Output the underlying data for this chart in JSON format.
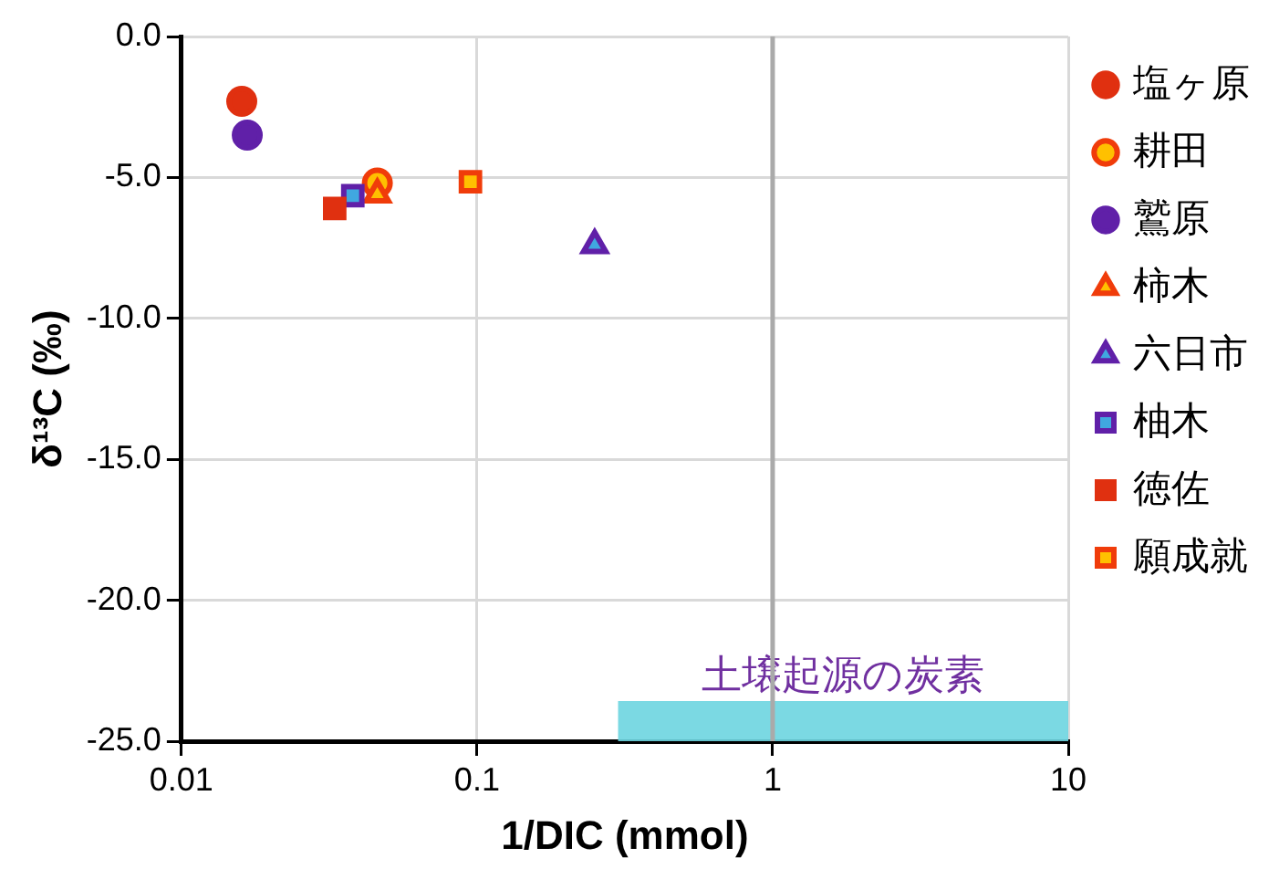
{
  "chart_data": {
    "type": "scatter",
    "xlabel": "1/DIC (mmol)",
    "ylabel": "δ¹³C (‰)",
    "log": "x",
    "xlim": [
      0.01,
      10
    ],
    "xticks": [
      0.01,
      0.1,
      1,
      10
    ],
    "ylim": [
      -25,
      0
    ],
    "yticks": [
      {
        "value": -25,
        "label": "-25.0"
      },
      {
        "value": -20,
        "label": "-20.0"
      },
      {
        "value": -15,
        "label": "-15.0"
      },
      {
        "value": -10,
        "label": "-10.0"
      },
      {
        "value": -5,
        "label": "-5.0"
      },
      {
        "value": 0,
        "label": "0.0"
      }
    ],
    "grid": true,
    "legend": "right",
    "ref_lines": [
      {
        "axis": "x",
        "value": 1,
        "color": "#aaaaaa"
      }
    ],
    "bands": [
      {
        "axis": "x",
        "from": 0.3,
        "to": 10,
        "label": "土壌起源の炭素",
        "color": "#6dd5e0"
      }
    ],
    "series": [
      {
        "name": "塩ヶ原",
        "marker": "circle",
        "color": "#e03010",
        "colors": [
          "#e03010"
        ],
        "x": [
          0.016
        ],
        "values": [
          -2.3
        ]
      },
      {
        "name": "耕田",
        "marker": "circle",
        "color": "#f03c0a",
        "colors": [
          "#ffc000"
        ],
        "x": [
          0.046
        ],
        "values": [
          -5.2
        ]
      },
      {
        "name": "鷲原",
        "marker": "circle",
        "color": "#6020a8",
        "colors": [
          "#6020a8"
        ],
        "x": [
          0.0167
        ],
        "values": [
          -3.5
        ]
      },
      {
        "name": "柿木",
        "marker": "triangle",
        "color": "#f03c0a",
        "colors": [
          "#ffc000"
        ],
        "x": [
          0.046
        ],
        "values": [
          -5.6
        ]
      },
      {
        "name": "六日市",
        "marker": "triangle",
        "color": "#6020a8",
        "colors": [
          "#40a8e0"
        ],
        "x": [
          0.25
        ],
        "values": [
          -7.4
        ]
      },
      {
        "name": "柚木",
        "marker": "square",
        "color": "#6020a8",
        "colors": [
          "#40a8e0"
        ],
        "x": [
          0.038
        ],
        "values": [
          -5.65
        ]
      },
      {
        "name": "徳佐",
        "marker": "square",
        "color": "#e03010",
        "colors": [
          "#e03010"
        ],
        "x": [
          0.033
        ],
        "values": [
          -6.1
        ]
      },
      {
        "name": "願成就",
        "marker": "square",
        "color": "#f03c0a",
        "colors": [
          "#ffc000"
        ],
        "x": [
          0.095
        ],
        "values": [
          -5.15
        ]
      }
    ]
  }
}
